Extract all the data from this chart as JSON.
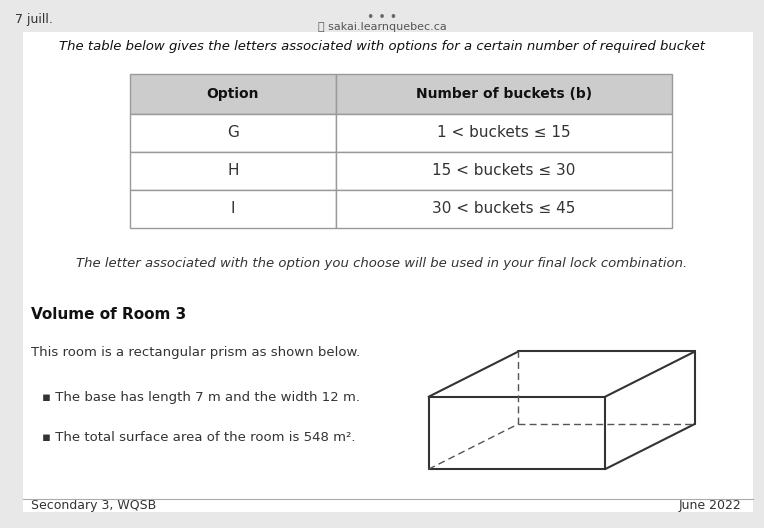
{
  "bg_color": "#e8e8e8",
  "page_bg": "#ffffff",
  "header_text": "7 juill.",
  "url_text": "sakai.learnquebec.ca",
  "intro_text": "The table below gives the letters associated with options for a certain number of required bucket",
  "table_headers": [
    "Option",
    "Number of buckets (b)"
  ],
  "table_rows": [
    [
      "G",
      "1 < buckets ≤ 15"
    ],
    [
      "H",
      "15 < buckets ≤ 30"
    ],
    [
      "I",
      "30 < buckets ≤ 45"
    ]
  ],
  "letter_note": "The letter associated with the option you choose will be used in your final lock combination.",
  "section_title": "Volume of Room 3",
  "section_desc": "This room is a rectangular prism as shown below.",
  "bullets": [
    "The base has length 7 m and the width 12 m.",
    "The total surface area of the room is 548 m²."
  ],
  "footer_left": "Secondary 3, WQSB",
  "footer_right": "June 2022",
  "table_header_bg": "#cccccc",
  "table_row_bg": "#ffffff",
  "table_border_color": "#999999",
  "header_font_color": "#111111",
  "body_font_color": "#333333",
  "title_font_color": "#111111"
}
